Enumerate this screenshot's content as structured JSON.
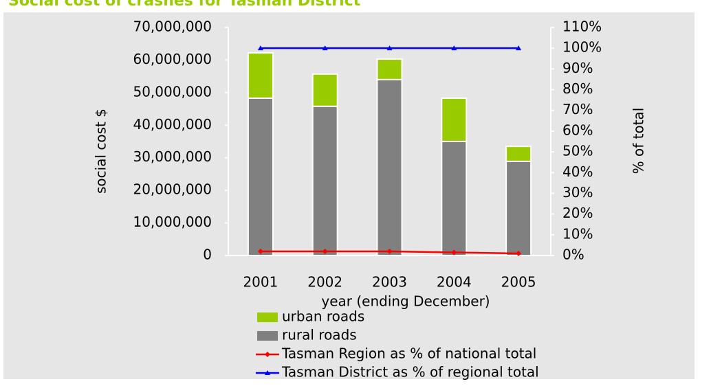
{
  "chart_data": {
    "type": "bar",
    "stacked": true,
    "title": "Social cost of crashes for Tasman District",
    "x_label": "year (ending December)",
    "y_label": "social cost $",
    "y2_label": "% of total",
    "categories": [
      "2001",
      "2002",
      "2003",
      "2004",
      "2005"
    ],
    "series": [
      {
        "name": "urban roads",
        "type": "bar",
        "color": "#99cc00",
        "values": [
          13900000,
          9900000,
          6300000,
          13300000,
          4600000
        ]
      },
      {
        "name": "rural roads",
        "type": "bar",
        "color": "#808080",
        "values": [
          48300000,
          45800000,
          54000000,
          35000000,
          28900000
        ]
      },
      {
        "name": "Tasman Region as % of national total",
        "type": "line",
        "axis": "y2",
        "color": "#ff0000",
        "marker": "diamond",
        "values": [
          2,
          2,
          2,
          1.5,
          1
        ]
      },
      {
        "name": "Tasman District as % of regional total",
        "type": "line",
        "axis": "y2",
        "color": "#0000ff",
        "marker": "triangle",
        "values": [
          100,
          100,
          100,
          100,
          100
        ]
      }
    ],
    "ylim": [
      0,
      70000000
    ],
    "yticks": [
      0,
      {
        "value": 10000000,
        "label": "10,000,000"
      },
      {
        "value": 20000000,
        "label": "20,000,000"
      },
      {
        "value": 30000000,
        "label": "30,000,000"
      },
      {
        "value": 40000000,
        "label": "40,000,000"
      },
      {
        "value": 50000000,
        "label": "50,000,000"
      },
      {
        "value": 60000000,
        "label": "60,000,000"
      },
      {
        "value": 70000000,
        "label": "70,000,000"
      }
    ],
    "y2lim": [
      0,
      110
    ],
    "y2ticks": [
      {
        "value": 0,
        "label": "0%"
      },
      {
        "value": 10,
        "label": "10%"
      },
      {
        "value": 20,
        "label": "20%"
      },
      {
        "value": 30,
        "label": "30%"
      },
      {
        "value": 40,
        "label": "40%"
      },
      {
        "value": 50,
        "label": "50%"
      },
      {
        "value": 60,
        "label": "60%"
      },
      {
        "value": 70,
        "label": "70%"
      },
      {
        "value": 80,
        "label": "80%"
      },
      {
        "value": 90,
        "label": "90%"
      },
      {
        "value": 100,
        "label": "100%"
      },
      {
        "value": 110,
        "label": "110%"
      }
    ]
  }
}
